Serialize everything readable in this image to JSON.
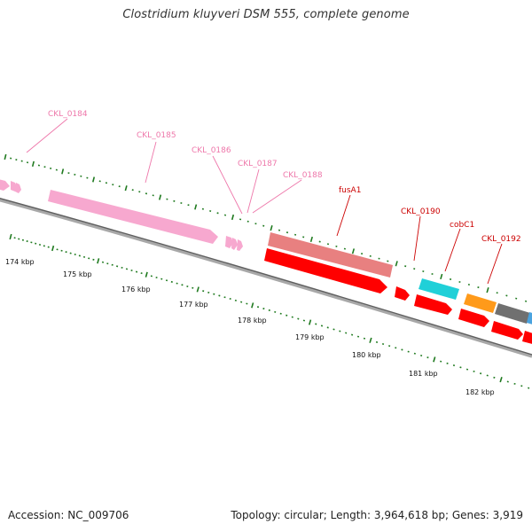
{
  "title": "Clostridium kluyveri DSM 555, complete genome",
  "footer": {
    "accession": "Accession: NC_009706",
    "summary": "Topology: circular; Length: 3,964,618 bp; Genes: 3,919"
  },
  "colors": {
    "backbone": "#7a7a7a",
    "tick_green": "#1f7a1f",
    "label_pink": "#ee77aa",
    "label_red": "#cc0000"
  },
  "scale_labels": [
    "174 kbp",
    "175 kbp",
    "176 kbp",
    "177 kbp",
    "178 kbp",
    "179 kbp",
    "180 kbp",
    "181 kbp",
    "182 kbp"
  ],
  "gene_labels": [
    {
      "text": "CKL_0184",
      "color": "#ee77aa"
    },
    {
      "text": "CKL_0185",
      "color": "#ee77aa"
    },
    {
      "text": "CKL_0186",
      "color": "#ee77aa"
    },
    {
      "text": "CKL_0187",
      "color": "#ee77aa"
    },
    {
      "text": "CKL_0188",
      "color": "#ee77aa"
    },
    {
      "text": "fusA1",
      "color": "#cc0000"
    },
    {
      "text": "CKL_0190",
      "color": "#cc0000"
    },
    {
      "text": "cobC1",
      "color": "#cc0000"
    },
    {
      "text": "CKL_0192",
      "color": "#cc0000"
    }
  ],
  "features": [
    {
      "name": "pink-small-0",
      "color": "#f7a8cf"
    },
    {
      "name": "pink-small-1",
      "color": "#f7a8cf"
    },
    {
      "name": "pink-small-2",
      "color": "#f7a8cf"
    },
    {
      "name": "pink-long",
      "color": "#f7a8cf"
    },
    {
      "name": "pink-small-3",
      "color": "#f7a8cf"
    },
    {
      "name": "pink-small-4",
      "color": "#f7a8cf"
    },
    {
      "name": "pink-small-5",
      "color": "#f7a8cf"
    },
    {
      "name": "salmon-block",
      "color": "#e88080"
    },
    {
      "name": "red-long",
      "color": "#ff0000"
    },
    {
      "name": "red-short-1",
      "color": "#ff0000"
    },
    {
      "name": "cyan-block",
      "color": "#20d0d8"
    },
    {
      "name": "red-short-2",
      "color": "#ff0000"
    },
    {
      "name": "orange-block",
      "color": "#ff9a1a"
    },
    {
      "name": "red-short-3",
      "color": "#ff0000"
    },
    {
      "name": "gray-block",
      "color": "#707070"
    },
    {
      "name": "red-short-4",
      "color": "#ff0000"
    },
    {
      "name": "blue-block",
      "color": "#4aa3df"
    },
    {
      "name": "red-edge",
      "color": "#ff0000"
    }
  ]
}
